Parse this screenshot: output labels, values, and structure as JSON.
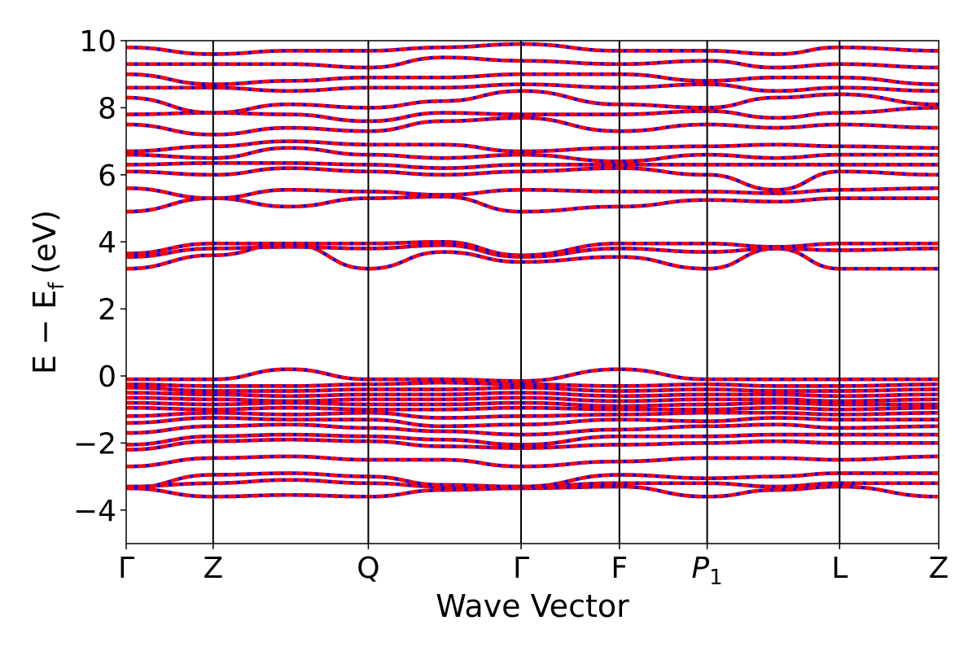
{
  "chart_data": {
    "type": "line",
    "xlabel": "Wave Vector",
    "ylabel": "E − E",
    "ylabel_sub": "f",
    "ylabel_unit": "(eV)",
    "ylim": [
      -5,
      10
    ],
    "xlim": [
      0,
      1
    ],
    "grid": false,
    "legend": "none",
    "y_ticks": [
      -4,
      -2,
      0,
      2,
      4,
      6,
      8,
      10
    ],
    "y_tick_labels": [
      "−4",
      "−2",
      "0",
      "2",
      "4",
      "6",
      "8",
      "10"
    ],
    "k_points": [
      {
        "label": "Γ",
        "base": "",
        "sub": "",
        "italic": false,
        "x": 0.0
      },
      {
        "label": "Z",
        "base": "",
        "sub": "",
        "italic": false,
        "x": 0.107
      },
      {
        "label": "Q",
        "base": "",
        "sub": "",
        "italic": false,
        "x": 0.298
      },
      {
        "label": "Γ",
        "base": "",
        "sub": "",
        "italic": false,
        "x": 0.486
      },
      {
        "label": "F",
        "base": "",
        "sub": "",
        "italic": false,
        "x": 0.607
      },
      {
        "label": "",
        "base": "P",
        "sub": "1",
        "italic": true,
        "x": 0.715
      },
      {
        "label": "L",
        "base": "",
        "sub": "",
        "italic": false,
        "x": 0.878
      },
      {
        "label": "Z",
        "base": "",
        "sub": "",
        "italic": false,
        "x": 1.0
      }
    ],
    "series_colors": {
      "spin_up": "#0000ff",
      "spin_down": "#ff0000"
    },
    "band_x": [
      0.0,
      0.107,
      0.2,
      0.298,
      0.39,
      0.486,
      0.607,
      0.715,
      0.8,
      0.878,
      1.0
    ],
    "bands": [
      [
        -3.35,
        -3.6,
        -3.55,
        -3.6,
        -3.4,
        -3.35,
        -3.3,
        -3.6,
        -3.4,
        -3.3,
        -3.6
      ],
      [
        -3.3,
        -3.2,
        -3.1,
        -3.2,
        -3.3,
        -3.3,
        -3.2,
        -3.2,
        -3.3,
        -3.2,
        -3.2
      ],
      [
        -3.35,
        -2.95,
        -2.9,
        -3.0,
        -3.25,
        -3.3,
        -2.95,
        -3.05,
        -3.0,
        -2.9,
        -2.9
      ],
      [
        -2.7,
        -2.45,
        -2.4,
        -2.5,
        -2.5,
        -2.7,
        -2.55,
        -2.45,
        -2.45,
        -2.5,
        -2.4
      ],
      [
        -2.2,
        -1.95,
        -1.9,
        -1.95,
        -2.1,
        -2.15,
        -2.05,
        -2.0,
        -1.95,
        -2.0,
        -2.0
      ],
      [
        -2.05,
        -1.8,
        -1.75,
        -1.8,
        -1.9,
        -2.05,
        -1.8,
        -1.8,
        -1.75,
        -1.75,
        -1.75
      ],
      [
        -1.7,
        -1.5,
        -1.45,
        -1.55,
        -1.65,
        -1.75,
        -1.6,
        -1.5,
        -1.45,
        -1.55,
        -1.5
      ],
      [
        -1.4,
        -1.25,
        -1.3,
        -1.3,
        -1.5,
        -1.45,
        -1.3,
        -1.35,
        -1.25,
        -1.3,
        -1.3
      ],
      [
        -1.2,
        -1.1,
        -1.15,
        -1.1,
        -1.25,
        -1.2,
        -1.15,
        -1.1,
        -1.1,
        -1.15,
        -1.1
      ],
      [
        -0.95,
        -1.0,
        -0.95,
        -1.0,
        -1.0,
        -0.95,
        -1.0,
        -1.0,
        -0.95,
        -1.0,
        -0.95
      ],
      [
        -0.8,
        -0.85,
        -0.8,
        -0.85,
        -0.85,
        -0.8,
        -0.9,
        -0.85,
        -0.8,
        -0.85,
        -0.85
      ],
      [
        -0.65,
        -0.7,
        -0.75,
        -0.7,
        -0.7,
        -0.65,
        -0.75,
        -0.7,
        -0.7,
        -0.75,
        -0.7
      ],
      [
        -0.5,
        -0.55,
        -0.6,
        -0.55,
        -0.55,
        -0.5,
        -0.6,
        -0.55,
        -0.55,
        -0.6,
        -0.55
      ],
      [
        -0.35,
        -0.45,
        -0.45,
        -0.4,
        -0.4,
        -0.35,
        -0.45,
        -0.4,
        -0.45,
        -0.45,
        -0.4
      ],
      [
        -0.25,
        -0.3,
        -0.3,
        -0.25,
        -0.2,
        -0.25,
        -0.3,
        -0.25,
        -0.3,
        -0.3,
        -0.25
      ],
      [
        -0.1,
        -0.1,
        0.2,
        -0.1,
        -0.1,
        -0.15,
        0.2,
        -0.1,
        -0.1,
        -0.1,
        -0.1
      ],
      [
        3.2,
        3.6,
        3.95,
        3.2,
        3.7,
        3.4,
        3.55,
        3.2,
        3.8,
        3.2,
        3.2
      ],
      [
        3.55,
        3.8,
        3.85,
        3.8,
        3.9,
        3.55,
        3.8,
        3.7,
        3.8,
        3.75,
        3.8
      ],
      [
        3.65,
        3.95,
        3.95,
        3.95,
        4.0,
        3.6,
        3.95,
        3.95,
        3.85,
        3.95,
        3.95
      ],
      [
        4.9,
        5.3,
        5.05,
        5.3,
        5.35,
        4.9,
        5.05,
        5.25,
        5.2,
        5.3,
        5.3
      ],
      [
        5.6,
        5.3,
        5.55,
        5.5,
        5.4,
        5.55,
        5.5,
        5.5,
        5.45,
        5.55,
        5.6
      ],
      [
        6.1,
        6.0,
        6.2,
        6.1,
        6.0,
        6.1,
        6.2,
        6.0,
        5.55,
        6.1,
        6.0
      ],
      [
        6.3,
        6.35,
        6.35,
        6.3,
        6.2,
        6.3,
        6.3,
        6.3,
        6.3,
        6.3,
        6.3
      ],
      [
        6.6,
        6.5,
        6.8,
        6.6,
        6.5,
        6.6,
        6.4,
        6.6,
        6.5,
        6.6,
        6.6
      ],
      [
        6.7,
        6.85,
        7.0,
        6.9,
        6.9,
        6.7,
        6.8,
        6.85,
        6.9,
        6.85,
        6.8
      ],
      [
        7.5,
        7.2,
        7.4,
        7.3,
        7.6,
        7.7,
        7.3,
        7.5,
        7.4,
        7.5,
        7.4
      ],
      [
        7.8,
        7.85,
        7.8,
        7.6,
        7.85,
        7.8,
        7.8,
        7.9,
        7.7,
        7.85,
        8.0
      ],
      [
        8.3,
        7.85,
        8.1,
        8.0,
        8.2,
        8.5,
        8.1,
        8.0,
        8.3,
        8.4,
        8.1
      ],
      [
        8.6,
        8.6,
        8.5,
        8.6,
        8.6,
        8.7,
        8.6,
        8.7,
        8.5,
        8.6,
        8.5
      ],
      [
        9.0,
        8.7,
        8.8,
        8.9,
        8.9,
        9.0,
        9.0,
        8.8,
        8.9,
        8.9,
        8.7
      ],
      [
        9.3,
        9.3,
        9.3,
        9.2,
        9.5,
        9.4,
        9.3,
        9.4,
        9.2,
        9.3,
        9.2
      ],
      [
        9.8,
        9.6,
        9.7,
        9.7,
        9.8,
        9.9,
        9.7,
        9.7,
        9.6,
        9.8,
        9.7
      ]
    ]
  }
}
